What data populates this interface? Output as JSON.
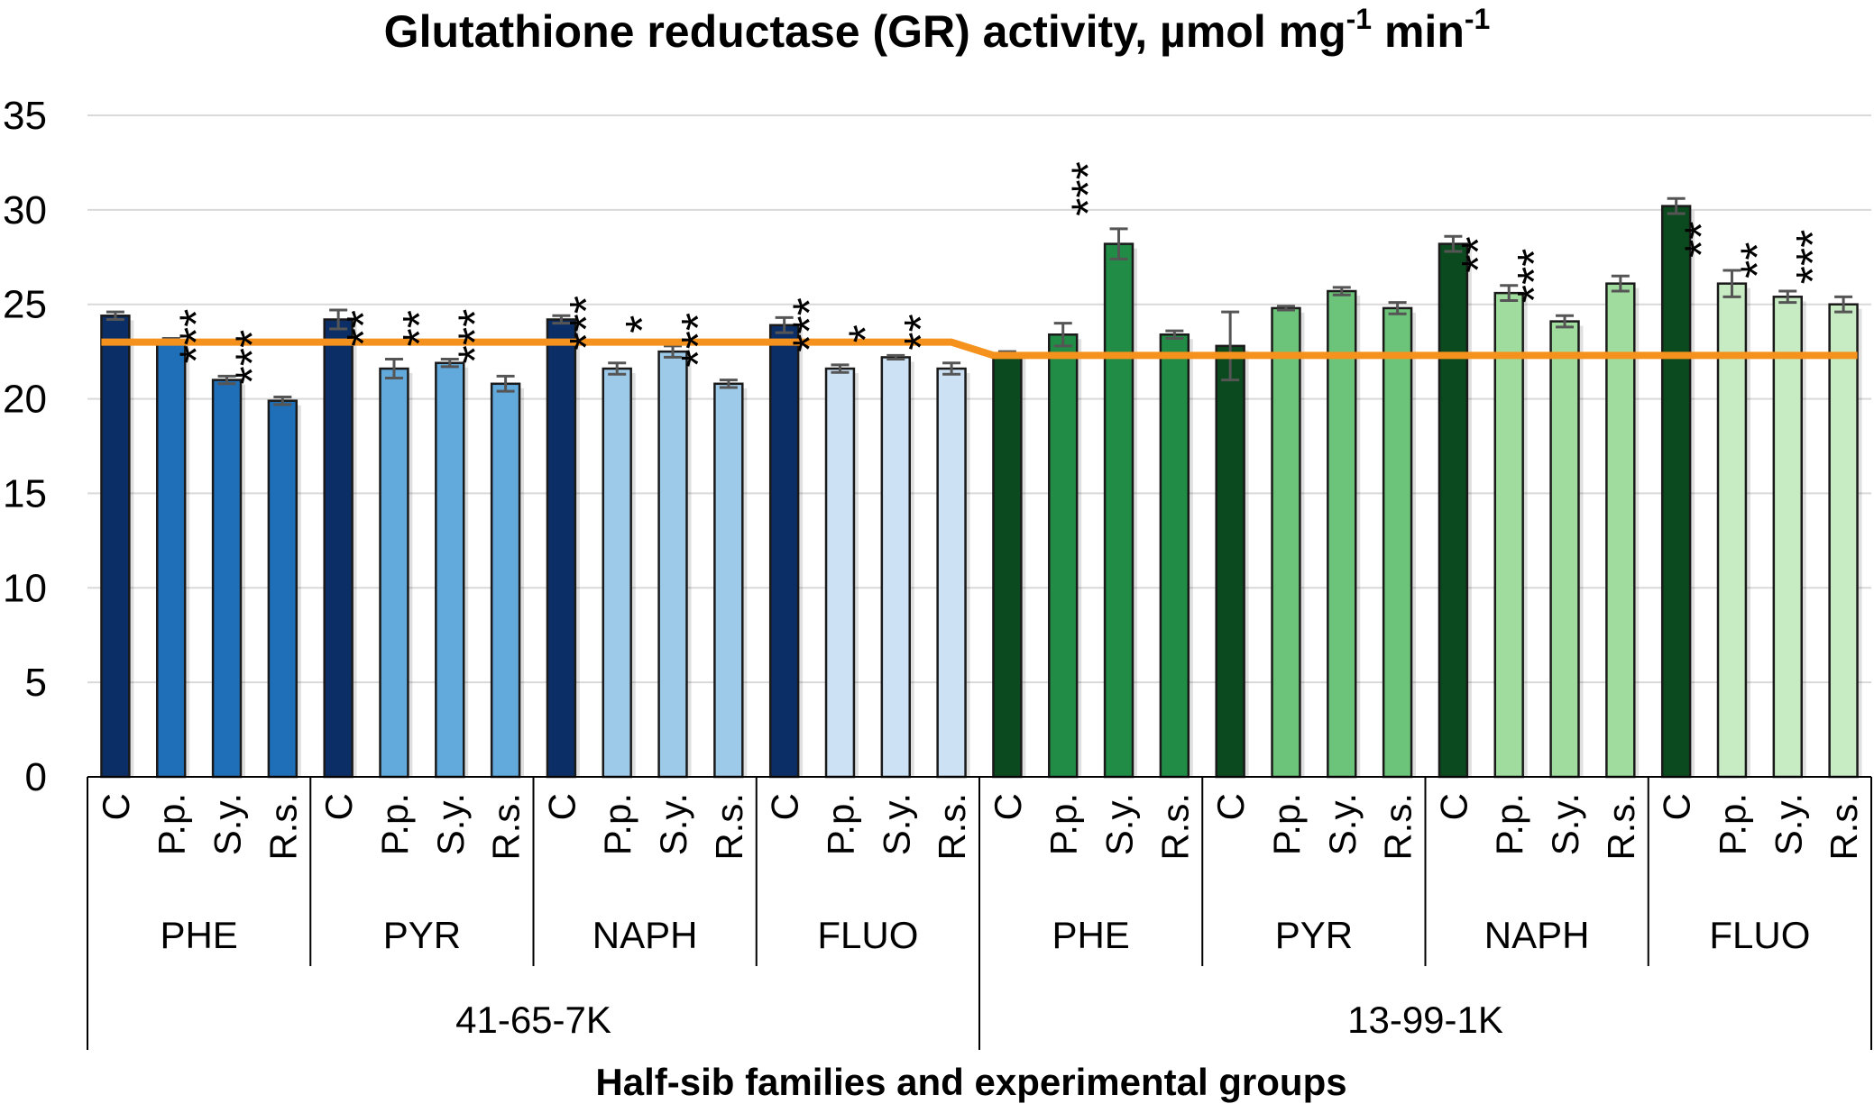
{
  "chart_data": {
    "type": "bar",
    "title": "Glutathione reductase (GR) activity, µmol mg",
    "title_sup1": "-1",
    "title_mid": " min",
    "title_sup2": "-1",
    "xlabel": "Half-sib families and experimental groups",
    "ylabel": "",
    "ylim": [
      0,
      35
    ],
    "yticks": [
      0,
      5,
      10,
      15,
      20,
      25,
      30,
      35
    ],
    "grid": true,
    "families": [
      {
        "name": "41-65-7K",
        "control_mean": 23.0,
        "groups": [
          {
            "name": "PHE",
            "bars": [
              {
                "label": "C",
                "value": 24.4,
                "err": 0.2,
                "sig": "",
                "color": "#0b2e66"
              },
              {
                "label": "P.p.",
                "value": 23.1,
                "err": 0.1,
                "sig": "",
                "color": "#1f6fb8"
              },
              {
                "label": "S.y.",
                "value": 21.0,
                "err": 0.2,
                "sig": "***",
                "color": "#1f6fb8"
              },
              {
                "label": "R.s.",
                "value": 19.9,
                "err": 0.2,
                "sig": "***",
                "color": "#1f6fb8"
              }
            ]
          },
          {
            "name": "PYR",
            "bars": [
              {
                "label": "C",
                "value": 24.2,
                "err": 0.5,
                "sig": "",
                "color": "#0b2e66"
              },
              {
                "label": "P.p.",
                "value": 21.6,
                "err": 0.5,
                "sig": "**",
                "color": "#62a9dc"
              },
              {
                "label": "S.y.",
                "value": 21.9,
                "err": 0.2,
                "sig": "**",
                "color": "#62a9dc"
              },
              {
                "label": "R.s.",
                "value": 20.8,
                "err": 0.4,
                "sig": "***",
                "color": "#62a9dc"
              }
            ]
          },
          {
            "name": "NAPH",
            "bars": [
              {
                "label": "C",
                "value": 24.2,
                "err": 0.2,
                "sig": "",
                "color": "#0b2e66"
              },
              {
                "label": "P.p.",
                "value": 21.6,
                "err": 0.3,
                "sig": "***",
                "color": "#9ecae9"
              },
              {
                "label": "S.y.",
                "value": 22.5,
                "err": 0.3,
                "sig": "*",
                "color": "#9ecae9"
              },
              {
                "label": "R.s.",
                "value": 20.8,
                "err": 0.2,
                "sig": "***",
                "color": "#9ecae9"
              }
            ]
          },
          {
            "name": "FLUO",
            "bars": [
              {
                "label": "C",
                "value": 23.9,
                "err": 0.4,
                "sig": "",
                "color": "#0b2e66"
              },
              {
                "label": "P.p.",
                "value": 21.6,
                "err": 0.2,
                "sig": "***",
                "color": "#cde1f5"
              },
              {
                "label": "S.y.",
                "value": 22.2,
                "err": 0.1,
                "sig": "*",
                "color": "#cde1f5"
              },
              {
                "label": "R.s.",
                "value": 21.6,
                "err": 0.3,
                "sig": "**",
                "color": "#cde1f5"
              }
            ]
          }
        ]
      },
      {
        "name": "13-99-1K",
        "control_mean": 22.3,
        "groups": [
          {
            "name": "PHE",
            "bars": [
              {
                "label": "C",
                "value": 22.4,
                "err": 0.1,
                "sig": "",
                "color": "#0a4a1e"
              },
              {
                "label": "P.p.",
                "value": 23.4,
                "err": 0.6,
                "sig": "",
                "color": "#218c45"
              },
              {
                "label": "S.y.",
                "value": 28.2,
                "err": 0.8,
                "sig": "***",
                "color": "#218c45"
              },
              {
                "label": "R.s.",
                "value": 23.4,
                "err": 0.2,
                "sig": "",
                "color": "#218c45"
              }
            ]
          },
          {
            "name": "PYR",
            "bars": [
              {
                "label": "C",
                "value": 22.8,
                "err": 1.8,
                "sig": "",
                "color": "#0a4a1e"
              },
              {
                "label": "P.p.",
                "value": 24.8,
                "err": 0.1,
                "sig": "",
                "color": "#6cc47a"
              },
              {
                "label": "S.y.",
                "value": 25.7,
                "err": 0.2,
                "sig": "",
                "color": "#6cc47a"
              },
              {
                "label": "R.s.",
                "value": 24.8,
                "err": 0.3,
                "sig": "",
                "color": "#6cc47a"
              }
            ]
          },
          {
            "name": "NAPH",
            "bars": [
              {
                "label": "C",
                "value": 28.2,
                "err": 0.4,
                "sig": "",
                "color": "#0a4a1e"
              },
              {
                "label": "P.p.",
                "value": 25.6,
                "err": 0.4,
                "sig": "**",
                "color": "#9fdc9e"
              },
              {
                "label": "S.y.",
                "value": 24.1,
                "err": 0.3,
                "sig": "***",
                "color": "#9fdc9e"
              },
              {
                "label": "R.s.",
                "value": 26.1,
                "err": 0.4,
                "sig": "",
                "color": "#9fdc9e"
              }
            ]
          },
          {
            "name": "FLUO",
            "bars": [
              {
                "label": "C",
                "value": 30.2,
                "err": 0.4,
                "sig": "",
                "color": "#0a4a1e"
              },
              {
                "label": "P.p.",
                "value": 26.1,
                "err": 0.7,
                "sig": "**",
                "color": "#c7ecc4"
              },
              {
                "label": "S.y.",
                "value": 25.4,
                "err": 0.3,
                "sig": "**",
                "color": "#c7ecc4"
              },
              {
                "label": "R.s.",
                "value": 25.0,
                "err": 0.4,
                "sig": "***",
                "color": "#c7ecc4"
              }
            ]
          }
        ]
      }
    ],
    "reference_line_color": "#f5921e"
  }
}
